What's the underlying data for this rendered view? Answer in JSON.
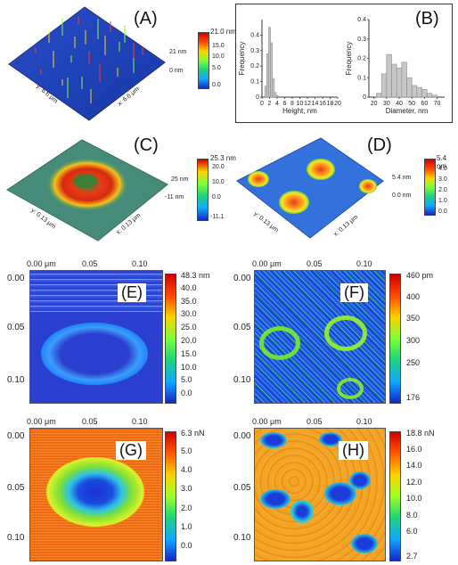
{
  "panels": {
    "A": {
      "label": "(A)",
      "scale_max": "21.0 nm",
      "scale_ticks": [
        "15.0",
        "10.0",
        "5.0",
        "0.0"
      ],
      "z_top": "21 nm",
      "z_bottom": "0 nm",
      "y_axis": "y: 6.6 μm",
      "x_axis": "x: 6.6 μm"
    },
    "B": {
      "label": "(B)"
    },
    "C": {
      "label": "(C)",
      "scale_max": "25.3 nm",
      "scale_ticks": [
        "20.0",
        "10.0",
        "0.0"
      ],
      "scale_min": "-11.1",
      "z_top": "25 nm",
      "z_bottom": "-11 nm",
      "y_axis": "y: 0.13 μm",
      "x_axis": "x: 0.13 μm"
    },
    "D": {
      "label": "(D)",
      "scale_max": "5.4 nm",
      "scale_ticks": [
        "4.0",
        "3.0",
        "2.0",
        "1.0",
        "0.0"
      ],
      "z_top": "5.4 nm",
      "z_bottom": "0.0 nm",
      "y_axis": "y: 0.13 μm",
      "x_axis": "x: 0.13 μm"
    },
    "E": {
      "label": "(E)",
      "scale_max": "48.3 nm",
      "scale_ticks": [
        "40.0",
        "35.0",
        "30.0",
        "25.0",
        "20.0",
        "15.0",
        "10.0",
        "5.0",
        "0.0"
      ]
    },
    "F": {
      "label": "(F)",
      "scale_max": "460 pm",
      "scale_ticks": [
        "400",
        "350",
        "300",
        "250"
      ],
      "scale_min": "176"
    },
    "G": {
      "label": "(G)",
      "scale_max": "6.3 nN",
      "scale_ticks": [
        "5.0",
        "4.0",
        "3.0",
        "2.0",
        "1.0",
        "0.0"
      ]
    },
    "H": {
      "label": "(H)",
      "scale_max": "18.8 nN",
      "scale_ticks": [
        "16.0",
        "14.0",
        "12.0",
        "10.0",
        "8.0",
        "6.0"
      ],
      "scale_min": "2.7"
    }
  },
  "map_axes": {
    "top_ticks": [
      "0.00 μm",
      "0.05",
      "0.10"
    ],
    "left_ticks": [
      "0.00",
      "0.05",
      "0.10"
    ]
  },
  "chart_data": [
    {
      "type": "bar",
      "xlabel": "Height, nm",
      "ylabel": "Frequency",
      "x_ticks": [
        "0",
        "2",
        "4",
        "6",
        "8",
        "10",
        "12",
        "14",
        "16",
        "18",
        "20"
      ],
      "y_ticks": [
        "0",
        "0.1",
        "0.2",
        "0.3",
        "0.4"
      ],
      "ylim": [
        0,
        0.5
      ],
      "bin_width": 0.5,
      "x": [
        1.0,
        1.5,
        2.0,
        2.5,
        3.0,
        3.5,
        4.0,
        15.5
      ],
      "values": [
        0.07,
        0.28,
        0.45,
        0.35,
        0.12,
        0.03,
        0.01,
        0.005
      ]
    },
    {
      "type": "bar",
      "xlabel": "Diameter, nm",
      "ylabel": "Frequency",
      "x_ticks": [
        "20",
        "30",
        "40",
        "50",
        "60",
        "70"
      ],
      "y_ticks": [
        "0",
        "0.1",
        "0.2",
        "0.3",
        "0.4"
      ],
      "ylim": [
        0,
        0.4
      ],
      "bin_width": 4,
      "x": [
        24,
        28,
        32,
        36,
        40,
        44,
        48,
        52,
        56,
        60,
        64,
        68
      ],
      "values": [
        0.02,
        0.12,
        0.22,
        0.17,
        0.15,
        0.18,
        0.1,
        0.06,
        0.05,
        0.04,
        0.02,
        0.01
      ]
    }
  ]
}
